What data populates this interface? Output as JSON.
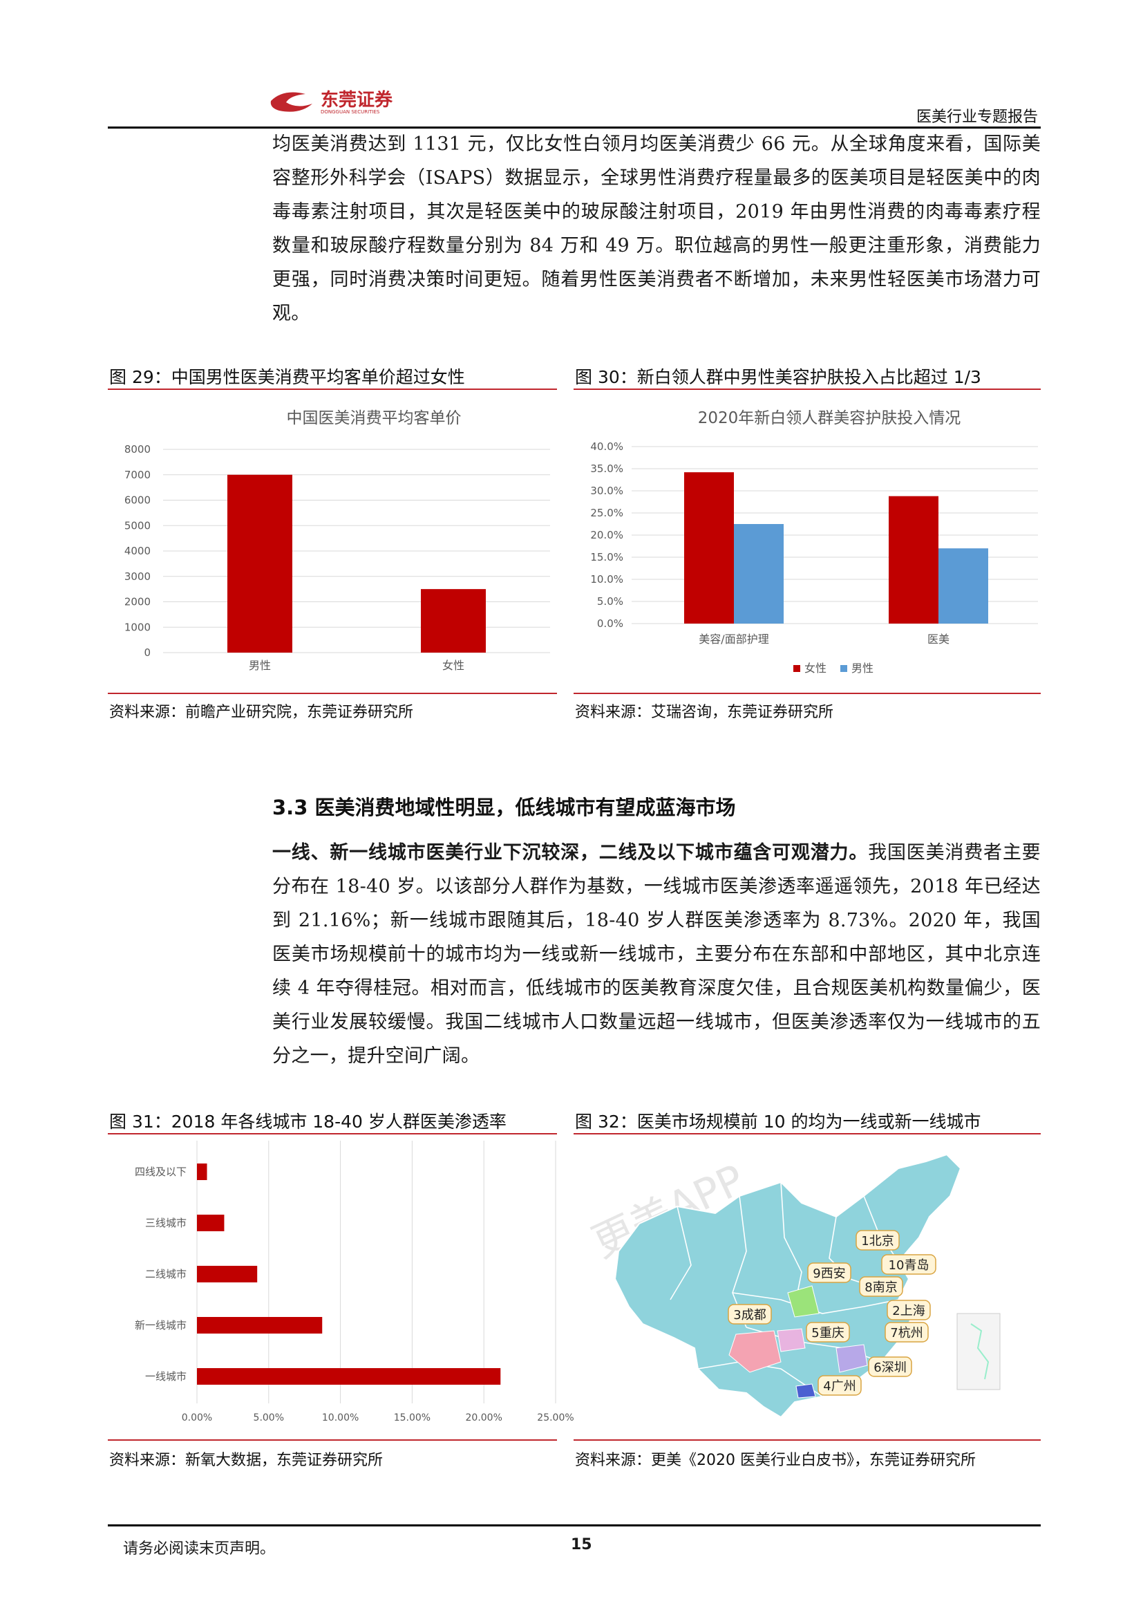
{
  "header": {
    "logo_cn": "东莞证券",
    "logo_en": "DONGGUAN SECURITIES",
    "report_name": "医美行业专题报告"
  },
  "paragraph1": "均医美消费达到 1131 元，仅比女性白领月均医美消费少 66 元。从全球角度来看，国际美容整形外科学会（ISAPS）数据显示，全球男性消费疗程量最多的医美项目是轻医美中的肉毒毒素注射项目，其次是轻医美中的玻尿酸注射项目，2019 年由男性消费的肉毒毒素疗程数量和玻尿酸疗程数量分别为 84 万和 49 万。职位越高的男性一般更注重形象，消费能力更强，同时消费决策时间更短。随着男性医美消费者不断增加，未来男性轻医美市场潜力可观。",
  "figure29": {
    "title": "图 29：中国男性医美消费平均客单价超过女性",
    "source": "资料来源：前瞻产业研究院，东莞证券研究所"
  },
  "figure30": {
    "title": "图 30：新白领人群中男性美容护肤投入占比超过 1/3",
    "source": "资料来源：艾瑞咨询，东莞证券研究所"
  },
  "section": {
    "heading": "3.3 医美消费地域性明显，低线城市有望成蓝海市场",
    "lead_bold": "一线、新一线城市医美行业下沉较深，二线及以下城市蕴含可观潜力。",
    "body": "我国医美消费者主要分布在 18-40 岁。以该部分人群作为基数，一线城市医美渗透率遥遥领先，2018 年已经达到 21.16%；新一线城市跟随其后，18-40 岁人群医美渗透率为 8.73%。2020 年，我国医美市场规模前十的城市均为一线或新一线城市，主要分布在东部和中部地区，其中北京连续 4 年夺得桂冠。相对而言，低线城市的医美教育深度欠佳，且合规医美机构数量偏少，医美行业发展较缓慢。我国二线城市人口数量远超一线城市，但医美渗透率仅为一线城市的五分之一，提升空间广阔。"
  },
  "figure31": {
    "title": "图 31：2018 年各线城市 18-40 岁人群医美渗透率",
    "source": "资料来源：新氧大数据，东莞证券研究所"
  },
  "figure32": {
    "title": "图 32：医美市场规模前 10 的均为一线或新一线城市",
    "source": "资料来源：更美《2020 医美行业白皮书》，东莞证券研究所",
    "watermark": "更美APP",
    "cities": [
      "1北京",
      "10青岛",
      "9西安",
      "8南京",
      "3成都",
      "5重庆",
      "2上海",
      "7杭州",
      "6深圳",
      "4广州"
    ],
    "colors": {
      "land": "#8fd3dc",
      "border": "#ffffff",
      "label_fill": "#fff4d6",
      "label_stroke": "#d9a441"
    }
  },
  "footer": {
    "note": "请务必阅读末页声明。",
    "page_number": "15"
  },
  "colors": {
    "red": "#c00000",
    "blue": "#5b9bd5",
    "rule": "#c0262d"
  },
  "chart_data": [
    {
      "type": "bar",
      "title": "中国医美消费平均客单价",
      "categories": [
        "男性",
        "女性"
      ],
      "values": [
        7000,
        2500
      ],
      "ylim": [
        0,
        8000
      ],
      "yticks": [
        "0",
        "1000",
        "2000",
        "3000",
        "4000",
        "5000",
        "6000",
        "7000",
        "8000"
      ],
      "grid": true,
      "color": "#c00000"
    },
    {
      "type": "bar",
      "title": "2020年新白领人群美容护肤投入情况",
      "categories": [
        "美容/面部护理",
        "医美"
      ],
      "series": [
        {
          "name": "女性",
          "values": [
            34.2,
            28.8
          ],
          "color": "#c00000"
        },
        {
          "name": "男性",
          "values": [
            22.5,
            17.0
          ],
          "color": "#5b9bd5"
        }
      ],
      "ylim": [
        0,
        40
      ],
      "yticks": [
        "0.0%",
        "5.0%",
        "10.0%",
        "15.0%",
        "20.0%",
        "25.0%",
        "30.0%",
        "35.0%",
        "40.0%"
      ],
      "grid": true,
      "legend": "bottom"
    },
    {
      "type": "bar",
      "orientation": "horizontal",
      "categories": [
        "四线及以下",
        "三线城市",
        "二线城市",
        "新一线城市",
        "一线城市"
      ],
      "values": [
        0.7,
        1.9,
        4.2,
        8.73,
        21.16
      ],
      "xlim": [
        0,
        25
      ],
      "xticks": [
        "0.00%",
        "5.00%",
        "10.00%",
        "15.00%",
        "20.00%",
        "25.00%"
      ],
      "grid": true,
      "color": "#c00000"
    }
  ]
}
